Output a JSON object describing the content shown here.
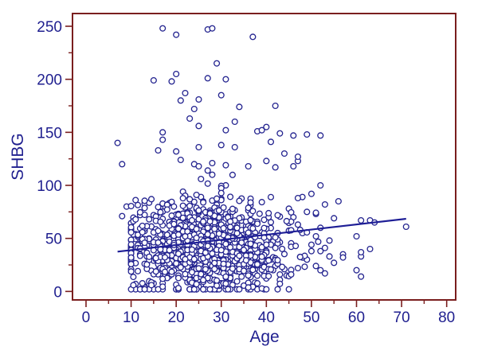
{
  "chart_data": {
    "type": "scatter",
    "title": "",
    "xlabel": "Age",
    "ylabel": "SHBG",
    "xlim": [
      -3,
      82
    ],
    "ylim": [
      -8,
      262
    ],
    "xticks": [
      0,
      10,
      20,
      30,
      40,
      50,
      60,
      70,
      80
    ],
    "yticks": [
      0,
      50,
      100,
      150,
      200,
      250
    ],
    "xtick_labels": [
      "0",
      "10",
      "20",
      "30",
      "40",
      "50",
      "60",
      "70",
      "80"
    ],
    "ytick_labels": [
      "0",
      "50",
      "100",
      "150",
      "200",
      "250"
    ],
    "minor_x_step": 5,
    "minor_y_step": 25,
    "grid": false,
    "colors": {
      "frame": "#7a1e1e",
      "marker": "#23238f",
      "line": "#1e1e96",
      "text": "#1f1f8f"
    },
    "trend_line": {
      "x": [
        7,
        71
      ],
      "y": [
        37.5,
        68.5
      ]
    },
    "points": [
      [
        7,
        140
      ],
      [
        8,
        120
      ],
      [
        8,
        71
      ],
      [
        9,
        80
      ],
      [
        10,
        32
      ],
      [
        17,
        248
      ],
      [
        20,
        242
      ],
      [
        27,
        247
      ],
      [
        28,
        248
      ],
      [
        37,
        240
      ],
      [
        29,
        215
      ],
      [
        15,
        199
      ],
      [
        19,
        198
      ],
      [
        20,
        205
      ],
      [
        22,
        187
      ],
      [
        25,
        181
      ],
      [
        21,
        180
      ],
      [
        24,
        172
      ],
      [
        27,
        201
      ],
      [
        31,
        200
      ],
      [
        30,
        185
      ],
      [
        34,
        174
      ],
      [
        42,
        175
      ],
      [
        23,
        163
      ],
      [
        25,
        156
      ],
      [
        33,
        160
      ],
      [
        31,
        152
      ],
      [
        38,
        151
      ],
      [
        40,
        155
      ],
      [
        39,
        152
      ],
      [
        43,
        149
      ],
      [
        46,
        147
      ],
      [
        49,
        148
      ],
      [
        52,
        147
      ],
      [
        17,
        150
      ],
      [
        17,
        143
      ],
      [
        16,
        133
      ],
      [
        20,
        132
      ],
      [
        25,
        136
      ],
      [
        30,
        138
      ],
      [
        33,
        136
      ],
      [
        41,
        141
      ],
      [
        44,
        130
      ],
      [
        40,
        123
      ],
      [
        47,
        123
      ],
      [
        47,
        127
      ],
      [
        46,
        118
      ],
      [
        24,
        120
      ],
      [
        25,
        118
      ],
      [
        27,
        114
      ],
      [
        31,
        119
      ],
      [
        36,
        118
      ],
      [
        42,
        117
      ],
      [
        21,
        124
      ],
      [
        28,
        121
      ],
      [
        12,
        72
      ],
      [
        13,
        57
      ],
      [
        11,
        54
      ],
      [
        12,
        45
      ],
      [
        14,
        43
      ],
      [
        14,
        50
      ],
      [
        15,
        29
      ],
      [
        16,
        18
      ],
      [
        16,
        28
      ],
      [
        12,
        35
      ],
      [
        13,
        26
      ],
      [
        52,
        100
      ],
      [
        50,
        92
      ],
      [
        48,
        89
      ],
      [
        47,
        88
      ],
      [
        56,
        85
      ],
      [
        53,
        82
      ],
      [
        49,
        75
      ],
      [
        51,
        73
      ],
      [
        55,
        69
      ],
      [
        52,
        60
      ],
      [
        51,
        52
      ],
      [
        54,
        48
      ],
      [
        53,
        41
      ],
      [
        52,
        38
      ],
      [
        54,
        33
      ],
      [
        57,
        35
      ],
      [
        57,
        32
      ],
      [
        60,
        52
      ],
      [
        61,
        33
      ],
      [
        61,
        37
      ],
      [
        61,
        14
      ],
      [
        60,
        20
      ],
      [
        63,
        40
      ],
      [
        61,
        67
      ],
      [
        63,
        67
      ],
      [
        64,
        65
      ],
      [
        71,
        61
      ],
      [
        50,
        44
      ],
      [
        49,
        30
      ],
      [
        51,
        24
      ],
      [
        53,
        17
      ],
      [
        52,
        20
      ],
      [
        55,
        27
      ],
      [
        50,
        38
      ],
      [
        48,
        55
      ],
      [
        47,
        63
      ],
      [
        46,
        70
      ],
      [
        45,
        78
      ],
      [
        48,
        32
      ],
      [
        47,
        22
      ],
      [
        43,
        16
      ],
      [
        44,
        21
      ],
      [
        41,
        30
      ],
      [
        39,
        40
      ]
    ],
    "cloud": {
      "count": 1050,
      "seed": 12345,
      "x_center": 27,
      "x_sd": 9,
      "x_min": 10,
      "x_max": 52,
      "y_center": 42,
      "y_sd": 22,
      "y_min": 2,
      "y_max": 110
    }
  }
}
